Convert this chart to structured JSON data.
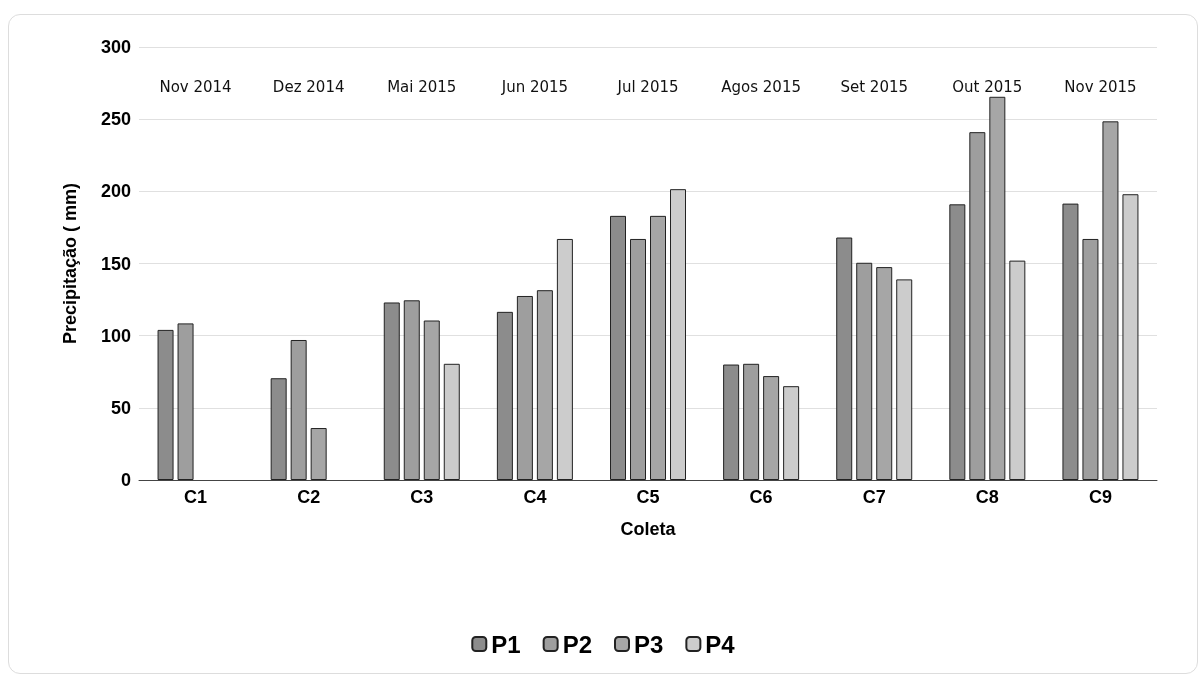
{
  "chart_data": {
    "type": "bar",
    "xlabel": "Coleta",
    "ylabel": "Precipitação ( mm)",
    "categories": [
      "C1",
      "C2",
      "C3",
      "C4",
      "C5",
      "C6",
      "C7",
      "C8",
      "C9"
    ],
    "series": [
      {
        "name": "P1",
        "color": "#8c8c8c",
        "values": [
          104,
          70.5,
          123,
          116.5,
          183,
          80,
          168,
          191,
          191.5
        ]
      },
      {
        "name": "P2",
        "color": "#9e9e9e",
        "values": [
          108.5,
          97,
          124.5,
          127.5,
          167,
          80.5,
          150.5,
          241,
          167
        ]
      },
      {
        "name": "P3",
        "color": "#a6a6a6",
        "values": [
          null,
          36,
          110.5,
          131.5,
          183,
          72,
          147.5,
          265.5,
          248.5
        ]
      },
      {
        "name": "P4",
        "color": "#cccccc",
        "values": [
          null,
          null,
          80.5,
          167,
          201.5,
          65,
          139,
          152,
          198
        ]
      }
    ],
    "ylim": [
      0,
      300
    ],
    "yticks": [
      0,
      50,
      100,
      150,
      200,
      250,
      300
    ],
    "grid": "y",
    "legend": "bottom",
    "annotations": [
      "Nov 2014",
      "Dez 2014",
      "Mai 2015",
      "Jun 2015",
      "Jul 2015",
      "Agos 2015",
      "Set 2015",
      "Out 2015",
      "Nov 2015"
    ]
  }
}
